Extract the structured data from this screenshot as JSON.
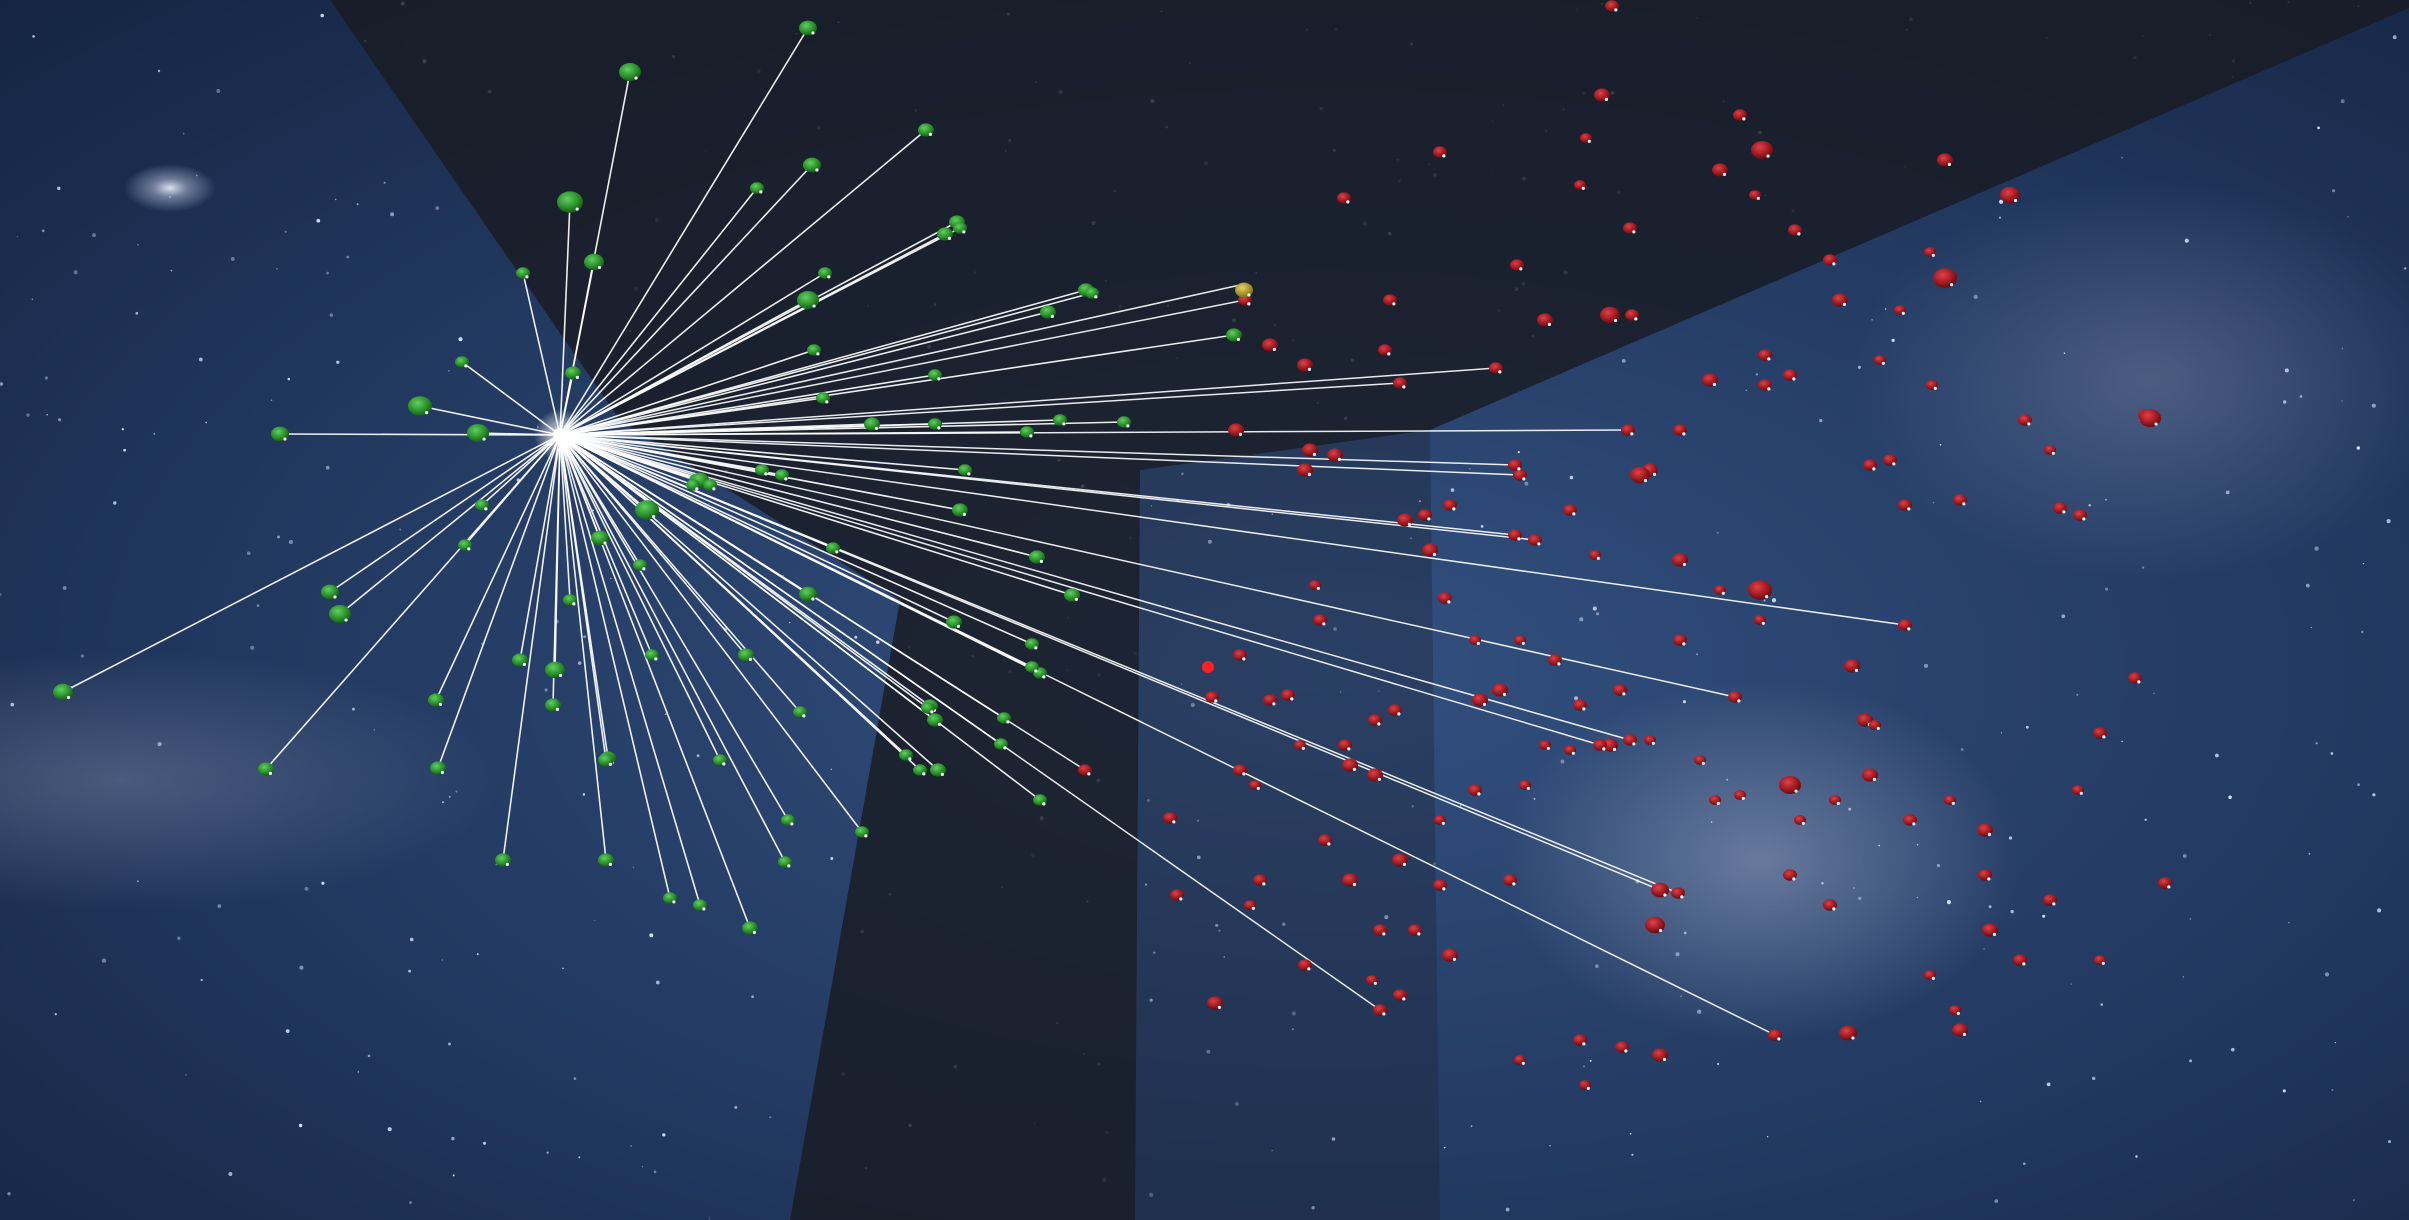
{
  "view": {
    "description_hidden": true,
    "colors": {
      "space_deep": "#0d1a33",
      "space_mid": "#23416f",
      "space_light": "#4f6aa3",
      "panel_dark": "#1a1d26",
      "line": "#ffffff",
      "node_green": "#2e9a2e",
      "node_green_dark": "#1a6b1a",
      "node_red": "#a41a1e",
      "node_red_dark": "#6b0d12",
      "node_yellow": "#b8a22a",
      "marker_red": "#ff2020"
    },
    "icons": {
      "hub": "hub-node-icon",
      "node_green": "green-node-icon",
      "node_red": "red-node-icon"
    }
  }
}
